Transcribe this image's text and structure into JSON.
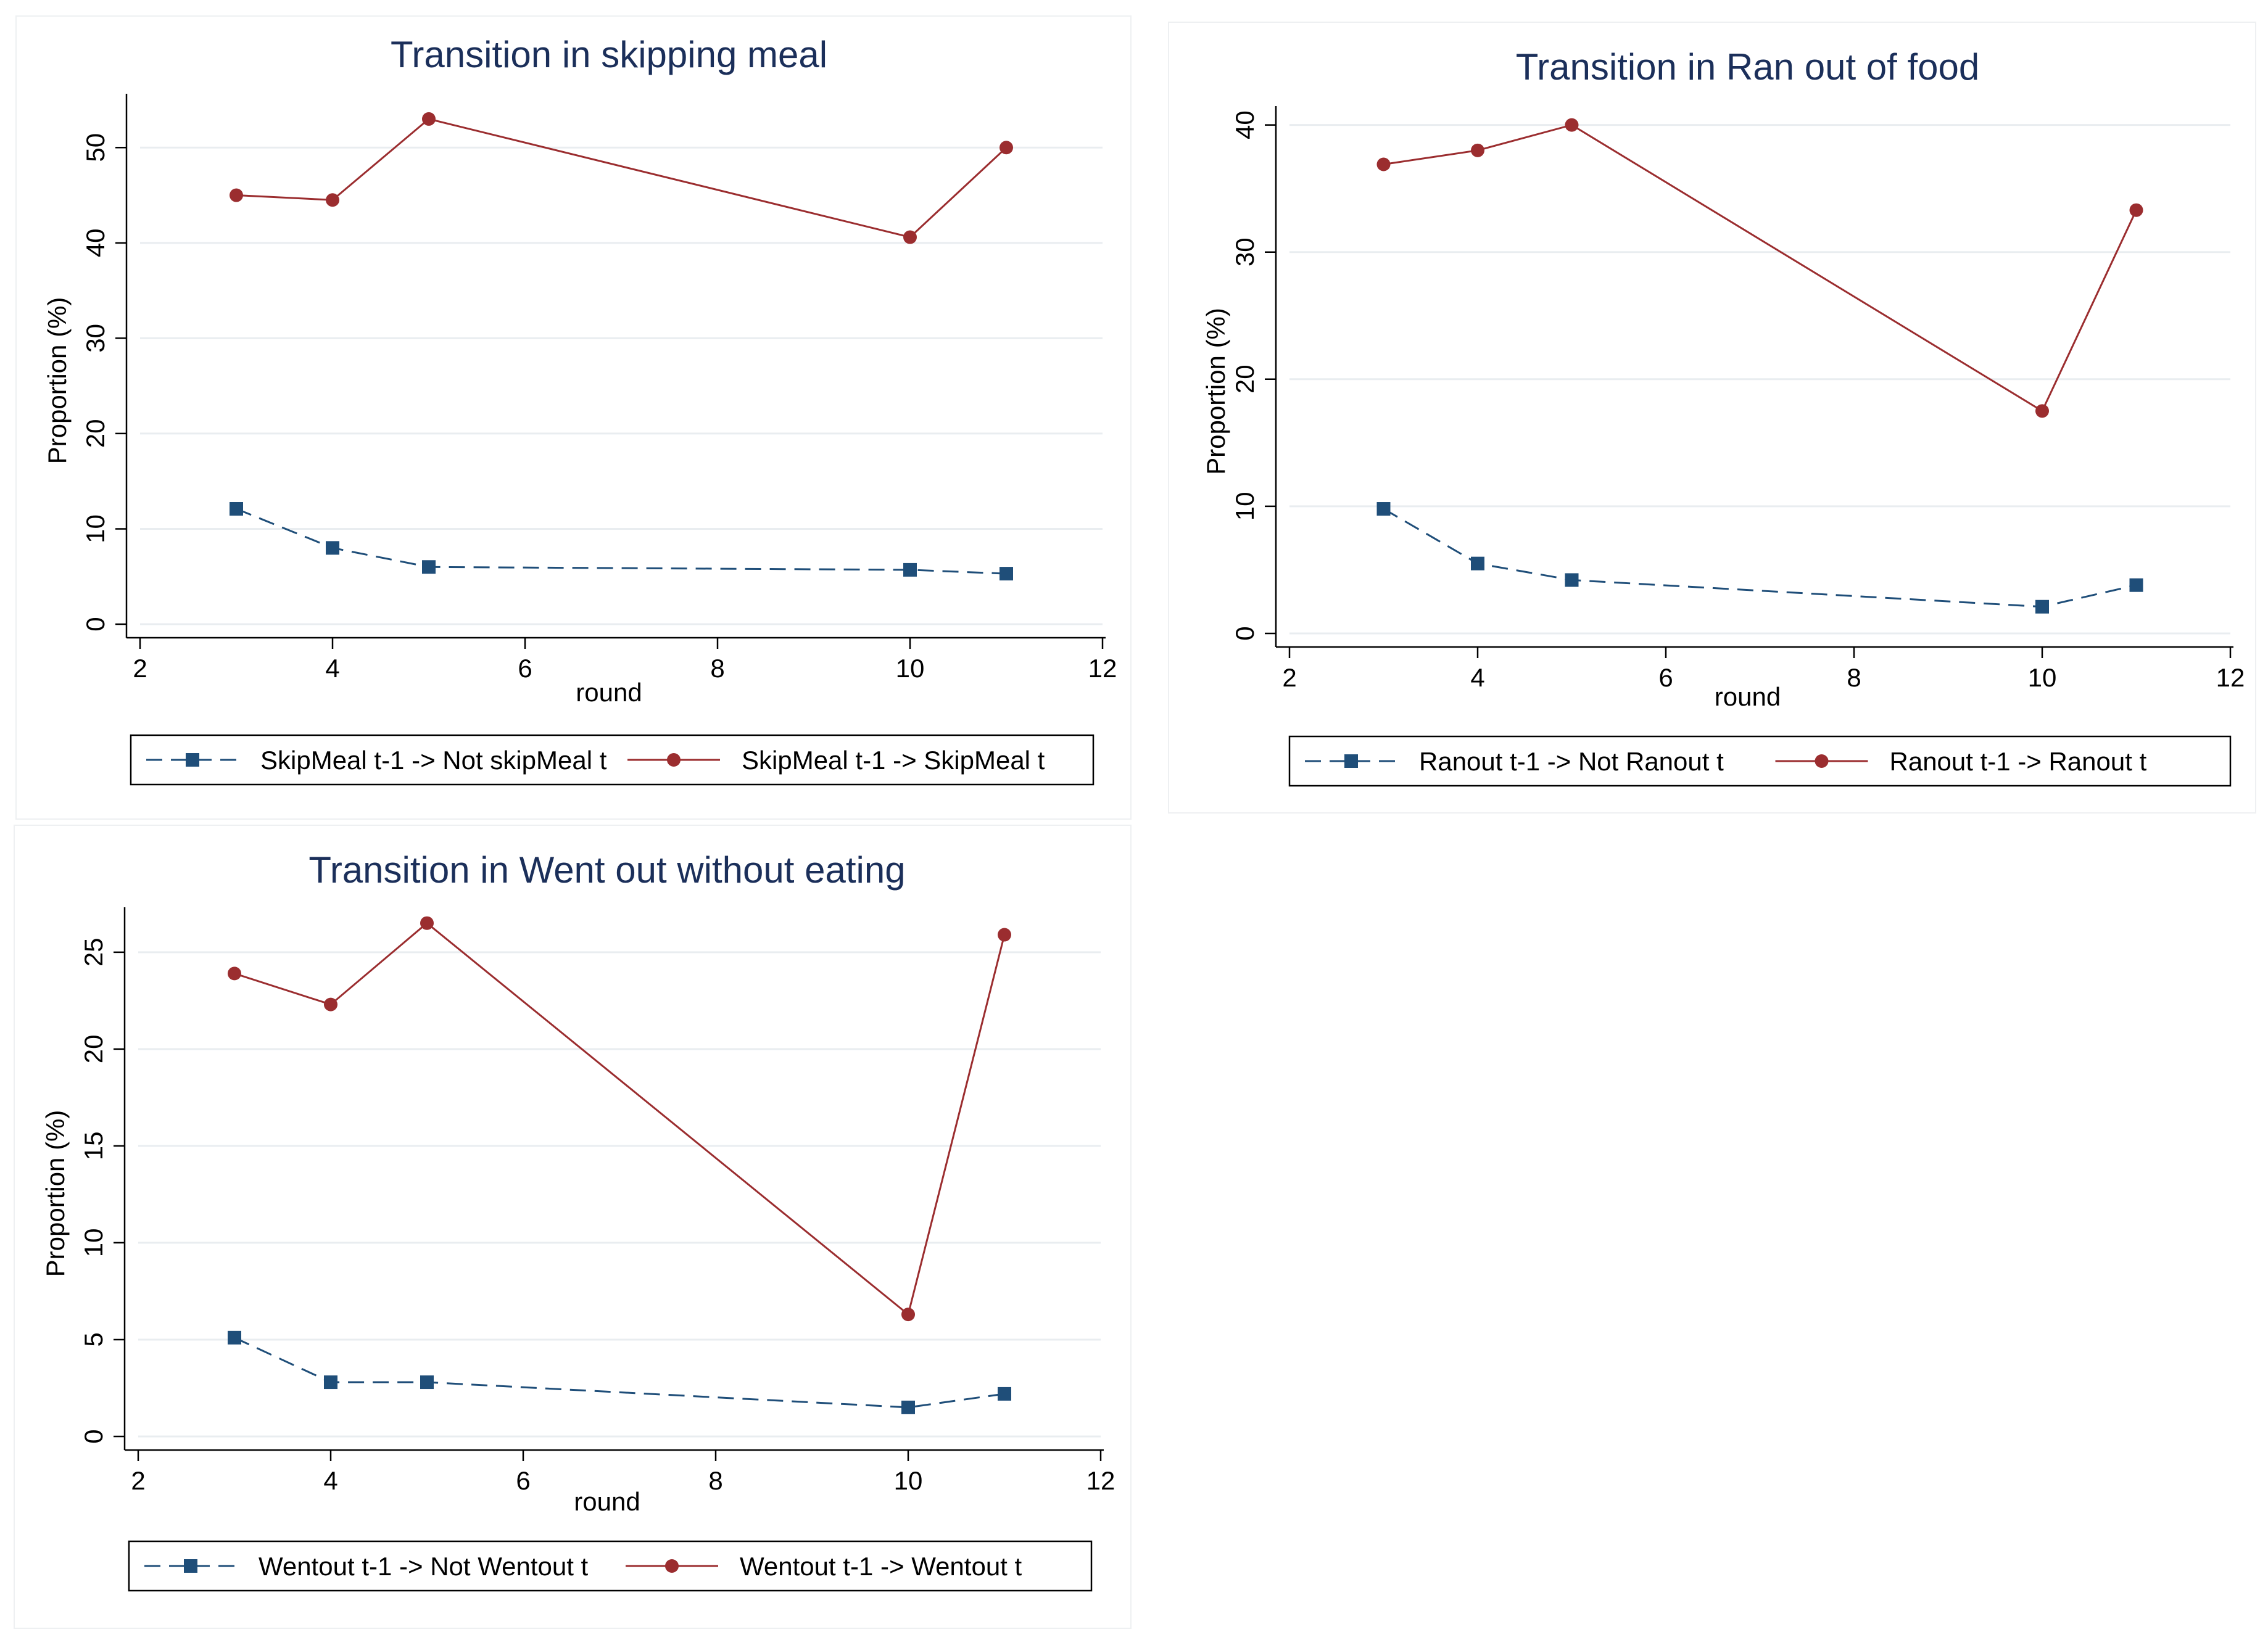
{
  "chart_data": [
    {
      "type": "line",
      "title": "Transition in skipping meal",
      "xlabel": "round",
      "ylabel": "Proportion (%)",
      "xlim": [
        2,
        12
      ],
      "ylim": [
        0,
        55
      ],
      "xticks": [
        2,
        4,
        6,
        8,
        10,
        12
      ],
      "yticks": [
        0,
        10,
        20,
        30,
        40,
        50
      ],
      "grid": true,
      "legend_position": "bottom",
      "x": [
        3,
        4,
        5,
        10,
        11
      ],
      "series": [
        {
          "name": "SkipMeal t-1 -> Not skipMeal t",
          "values": [
            12.1,
            8.0,
            6.0,
            5.7,
            5.3
          ],
          "color": "#1f4e79",
          "style": "dashed",
          "marker": "square"
        },
        {
          "name": "SkipMeal t-1 -> SkipMeal t",
          "values": [
            45.0,
            44.5,
            53.0,
            40.6,
            50.0
          ],
          "color": "#9b2d2f",
          "style": "solid",
          "marker": "circle"
        }
      ]
    },
    {
      "type": "line",
      "title": "Transition in Ran out of food",
      "xlabel": "round",
      "ylabel": "Proportion (%)",
      "xlim": [
        2,
        12
      ],
      "ylim": [
        0,
        41
      ],
      "xticks": [
        2,
        4,
        6,
        8,
        10,
        12
      ],
      "yticks": [
        0,
        10,
        20,
        30,
        40
      ],
      "grid": true,
      "legend_position": "bottom",
      "x": [
        3,
        4,
        5,
        10,
        11
      ],
      "series": [
        {
          "name": "Ranout t-1 -> Not Ranout t",
          "values": [
            9.8,
            5.5,
            4.2,
            2.1,
            3.8
          ],
          "color": "#1f4e79",
          "style": "dashed",
          "marker": "square"
        },
        {
          "name": "Ranout t-1 -> Ranout t",
          "values": [
            36.9,
            38.0,
            40.0,
            17.5,
            33.3
          ],
          "color": "#9b2d2f",
          "style": "solid",
          "marker": "circle"
        }
      ]
    },
    {
      "type": "line",
      "title": "Transition in Went out without eating",
      "xlabel": "round",
      "ylabel": "Proportion (%)",
      "xlim": [
        2,
        12
      ],
      "ylim": [
        0,
        27
      ],
      "xticks": [
        2,
        4,
        6,
        8,
        10,
        12
      ],
      "yticks": [
        0,
        5,
        10,
        15,
        20,
        25
      ],
      "grid": true,
      "legend_position": "bottom",
      "x": [
        3,
        4,
        5,
        10,
        11
      ],
      "series": [
        {
          "name": "Wentout t-1 -> Not Wentout t",
          "values": [
            5.1,
            2.8,
            2.8,
            1.5,
            2.2
          ],
          "color": "#1f4e79",
          "style": "dashed",
          "marker": "square"
        },
        {
          "name": "Wentout t-1 -> Wentout t",
          "values": [
            23.9,
            22.3,
            26.5,
            6.3,
            25.9
          ],
          "color": "#9b2d2f",
          "style": "solid",
          "marker": "circle"
        }
      ]
    }
  ]
}
